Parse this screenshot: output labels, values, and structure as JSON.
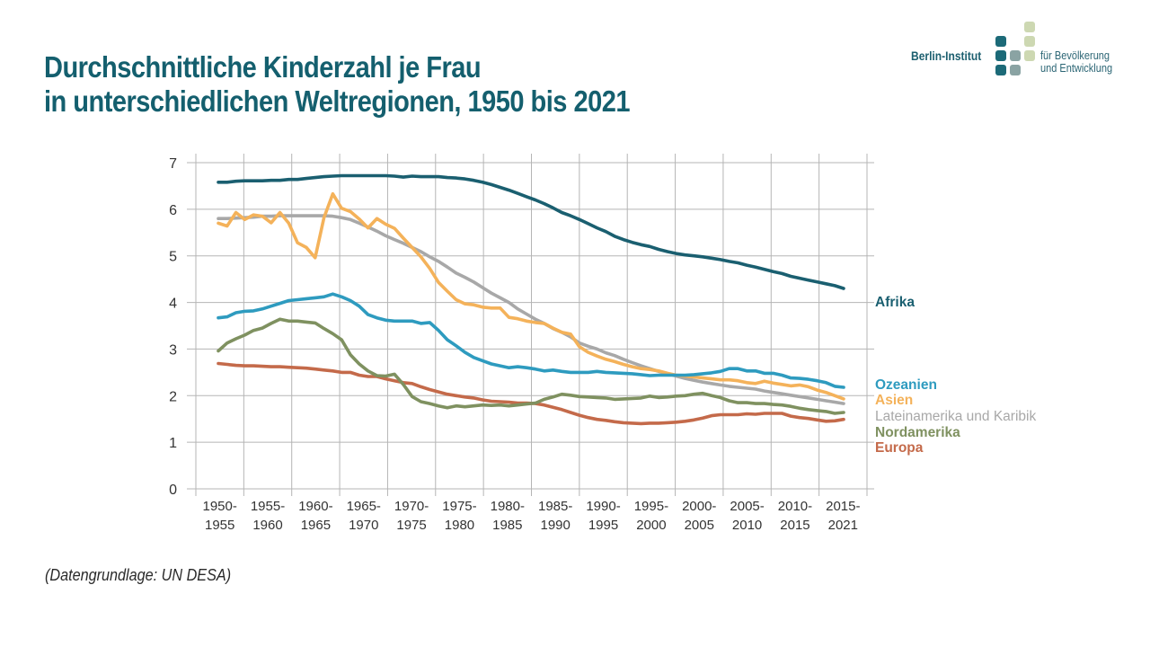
{
  "header": {
    "title_line1": "Durchschnittliche Kinderzahl je Frau",
    "title_line2": "in unterschiedlichen Weltregionen, 1950 bis 2021"
  },
  "logo": {
    "name": "Berlin-Institut",
    "subtitle_line1": "für Bevölkerung",
    "subtitle_line2": "und Entwicklung",
    "colors": {
      "dark": "#1c6a78",
      "mid": "#8aa3a3",
      "light": "#cdd8b2"
    }
  },
  "footer": {
    "source": "(Datengrundlage: UN DESA)"
  },
  "chart_data": {
    "type": "line",
    "title": "Durchschnittliche Kinderzahl je Frau in unterschiedlichen Weltregionen, 1950 bis 2021",
    "xlabel": "",
    "ylabel": "",
    "ylim": [
      0,
      7
    ],
    "yticks": [
      "0",
      "1",
      "2",
      "3",
      "4",
      "5",
      "6",
      "7"
    ],
    "grid": true,
    "legend_placement": "right (end-of-line labels)",
    "x_start": 1950,
    "x_end": 2021,
    "categories": [
      "1950-\n1955",
      "1955-\n1960",
      "1960-\n1965",
      "1965-\n1970",
      "1970-\n1975",
      "1975-\n1980",
      "1980-\n1985",
      "1985-\n1990",
      "1990-\n1995",
      "1995-\n2000",
      "2000-\n2005",
      "2005-\n2010",
      "2010-\n2015",
      "2015-\n2021"
    ],
    "series": [
      {
        "name": "Afrika",
        "color": "#1a5f70",
        "values": [
          6.58,
          6.58,
          6.6,
          6.61,
          6.61,
          6.61,
          6.62,
          6.62,
          6.64,
          6.64,
          6.66,
          6.68,
          6.7,
          6.71,
          6.72,
          6.72,
          6.72,
          6.72,
          6.72,
          6.72,
          6.71,
          6.69,
          6.71,
          6.7,
          6.7,
          6.7,
          6.68,
          6.67,
          6.65,
          6.62,
          6.58,
          6.53,
          6.47,
          6.41,
          6.34,
          6.27,
          6.2,
          6.12,
          6.03,
          5.93,
          5.86,
          5.78,
          5.69,
          5.6,
          5.52,
          5.42,
          5.35,
          5.29,
          5.24,
          5.2,
          5.14,
          5.09,
          5.05,
          5.02,
          5.0,
          4.98,
          4.95,
          4.92,
          4.88,
          4.85,
          4.8,
          4.76,
          4.71,
          4.66,
          4.62,
          4.56,
          4.52,
          4.48,
          4.44,
          4.4,
          4.36,
          4.3
        ]
      },
      {
        "name": "Ozeanien",
        "color": "#2e9bbf",
        "values": [
          3.67,
          3.69,
          3.78,
          3.81,
          3.82,
          3.86,
          3.92,
          3.98,
          4.04,
          4.06,
          4.08,
          4.1,
          4.12,
          4.18,
          4.12,
          4.04,
          3.92,
          3.74,
          3.67,
          3.62,
          3.6,
          3.6,
          3.6,
          3.55,
          3.57,
          3.4,
          3.2,
          3.07,
          2.93,
          2.82,
          2.75,
          2.68,
          2.64,
          2.6,
          2.62,
          2.6,
          2.57,
          2.53,
          2.55,
          2.52,
          2.5,
          2.5,
          2.5,
          2.52,
          2.5,
          2.49,
          2.48,
          2.47,
          2.45,
          2.43,
          2.44,
          2.44,
          2.44,
          2.44,
          2.45,
          2.47,
          2.49,
          2.52,
          2.58,
          2.58,
          2.53,
          2.53,
          2.48,
          2.48,
          2.44,
          2.38,
          2.37,
          2.35,
          2.32,
          2.28,
          2.2,
          2.18
        ]
      },
      {
        "name": "Asien",
        "color": "#f4b25a",
        "values": [
          5.7,
          5.64,
          5.93,
          5.78,
          5.88,
          5.85,
          5.71,
          5.93,
          5.7,
          5.28,
          5.18,
          4.96,
          5.82,
          6.33,
          6.02,
          5.95,
          5.79,
          5.6,
          5.8,
          5.68,
          5.59,
          5.38,
          5.18,
          4.98,
          4.73,
          4.43,
          4.24,
          4.06,
          3.97,
          3.95,
          3.9,
          3.88,
          3.88,
          3.68,
          3.65,
          3.6,
          3.57,
          3.55,
          3.45,
          3.36,
          3.32,
          3.05,
          2.93,
          2.85,
          2.78,
          2.73,
          2.67,
          2.62,
          2.58,
          2.56,
          2.53,
          2.48,
          2.44,
          2.42,
          2.4,
          2.38,
          2.36,
          2.34,
          2.34,
          2.32,
          2.28,
          2.26,
          2.31,
          2.27,
          2.24,
          2.21,
          2.23,
          2.19,
          2.12,
          2.07,
          2.0,
          1.93
        ]
      },
      {
        "name": "Lateinamerika und Karibik",
        "color": "#a8a8a8",
        "values": [
          5.8,
          5.8,
          5.81,
          5.82,
          5.83,
          5.85,
          5.85,
          5.86,
          5.86,
          5.86,
          5.86,
          5.86,
          5.86,
          5.85,
          5.82,
          5.78,
          5.7,
          5.62,
          5.53,
          5.43,
          5.35,
          5.27,
          5.18,
          5.09,
          4.98,
          4.88,
          4.76,
          4.63,
          4.54,
          4.44,
          4.32,
          4.2,
          4.1,
          4.0,
          3.86,
          3.75,
          3.64,
          3.55,
          3.44,
          3.36,
          3.26,
          3.13,
          3.06,
          3.0,
          2.92,
          2.86,
          2.78,
          2.71,
          2.64,
          2.58,
          2.52,
          2.47,
          2.42,
          2.37,
          2.33,
          2.29,
          2.26,
          2.23,
          2.2,
          2.18,
          2.16,
          2.14,
          2.1,
          2.07,
          2.04,
          2.01,
          1.98,
          1.95,
          1.92,
          1.89,
          1.86,
          1.83
        ]
      },
      {
        "name": "Nordamerika",
        "color": "#7f9160",
        "values": [
          2.96,
          3.13,
          3.22,
          3.3,
          3.4,
          3.45,
          3.55,
          3.64,
          3.6,
          3.6,
          3.58,
          3.56,
          3.44,
          3.33,
          3.2,
          2.88,
          2.68,
          2.53,
          2.43,
          2.42,
          2.46,
          2.24,
          1.98,
          1.87,
          1.83,
          1.78,
          1.74,
          1.78,
          1.76,
          1.78,
          1.8,
          1.79,
          1.8,
          1.78,
          1.8,
          1.82,
          1.84,
          1.92,
          1.97,
          2.03,
          2.01,
          1.98,
          1.97,
          1.96,
          1.95,
          1.92,
          1.93,
          1.94,
          1.95,
          1.99,
          1.96,
          1.97,
          1.99,
          2.0,
          2.03,
          2.05,
          2.0,
          1.96,
          1.89,
          1.85,
          1.85,
          1.83,
          1.83,
          1.81,
          1.8,
          1.77,
          1.73,
          1.7,
          1.68,
          1.66,
          1.62,
          1.64
        ]
      },
      {
        "name": "Europa",
        "color": "#c46a4a",
        "values": [
          2.69,
          2.67,
          2.65,
          2.64,
          2.64,
          2.63,
          2.62,
          2.62,
          2.61,
          2.6,
          2.59,
          2.57,
          2.55,
          2.53,
          2.5,
          2.5,
          2.44,
          2.41,
          2.41,
          2.36,
          2.32,
          2.28,
          2.26,
          2.19,
          2.13,
          2.08,
          2.03,
          2.0,
          1.97,
          1.95,
          1.91,
          1.88,
          1.87,
          1.86,
          1.84,
          1.84,
          1.83,
          1.8,
          1.75,
          1.7,
          1.64,
          1.58,
          1.53,
          1.49,
          1.47,
          1.44,
          1.42,
          1.41,
          1.4,
          1.41,
          1.41,
          1.42,
          1.43,
          1.45,
          1.48,
          1.52,
          1.57,
          1.59,
          1.59,
          1.59,
          1.61,
          1.6,
          1.62,
          1.62,
          1.62,
          1.56,
          1.53,
          1.51,
          1.48,
          1.45,
          1.46,
          1.49
        ]
      }
    ],
    "end_labels": [
      {
        "name": "Afrika",
        "color": "#1a5f70"
      },
      {
        "name": "Ozeanien",
        "color": "#2e9bbf"
      },
      {
        "name": "Asien",
        "color": "#f4b25a"
      },
      {
        "name": "Lateinamerika und Karibik",
        "color": "#a8a8a8"
      },
      {
        "name": "Nordamerika",
        "color": "#7f9160"
      },
      {
        "name": "Europa",
        "color": "#c46a4a"
      }
    ]
  }
}
